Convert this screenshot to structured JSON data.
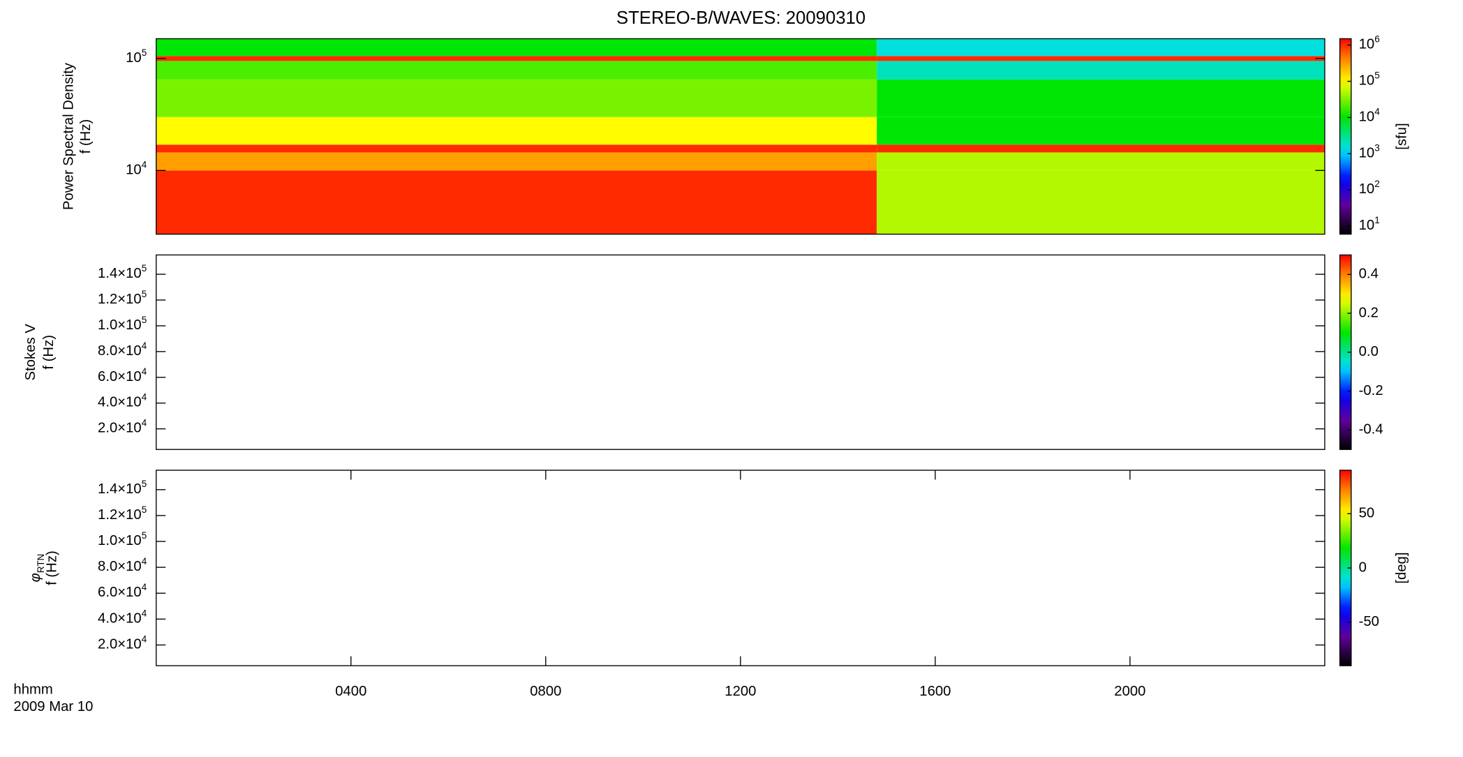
{
  "chart_data": [
    {
      "type": "spectrogram",
      "title": "STEREO-B/WAVES: 20090310",
      "ylabel": "Power Spectral Density",
      "ylabel2": "f (Hz)",
      "zlabel": "[sfu]",
      "xlim": [
        0,
        24
      ],
      "ylim": [
        2700,
        150000
      ],
      "log_y": true,
      "yticks": [
        {
          "value": 10000,
          "label": "10",
          "exp": "4"
        },
        {
          "value": 100000,
          "label": "10",
          "exp": "5"
        }
      ],
      "time_bins": [
        0,
        14.8,
        24
      ],
      "freq_bins": [
        2700,
        10000,
        14500,
        17000,
        30000,
        65000,
        95000,
        105000,
        150000
      ],
      "z": [
        [
          1000000,
          50000
        ],
        [
          300000,
          50000
        ],
        [
          1000000,
          1000000
        ],
        [
          100000,
          10000
        ],
        [
          30000,
          10000
        ],
        [
          20000,
          2000
        ],
        [
          1000000,
          1000000
        ],
        [
          10000,
          1500
        ]
      ],
      "zlim": [
        6,
        1500000
      ],
      "log_z": true,
      "zticks": [
        {
          "value": 10,
          "label": "10",
          "exp": "1"
        },
        {
          "value": 100,
          "label": "10",
          "exp": "2"
        },
        {
          "value": 1000,
          "label": "10",
          "exp": "3"
        },
        {
          "value": 10000,
          "label": "10",
          "exp": "4"
        },
        {
          "value": 100000,
          "label": "10",
          "exp": "5"
        },
        {
          "value": 1000000,
          "label": "10",
          "exp": "6"
        }
      ]
    },
    {
      "type": "spectrogram",
      "ylabel": "Stokes V",
      "ylabel2": "f (Hz)",
      "xlim": [
        0,
        24
      ],
      "ylim": [
        4000,
        155000
      ],
      "yticks": [
        {
          "value": 20000,
          "label": "2.0×10",
          "exp": "4"
        },
        {
          "value": 40000,
          "label": "4.0×10",
          "exp": "4"
        },
        {
          "value": 60000,
          "label": "6.0×10",
          "exp": "4"
        },
        {
          "value": 80000,
          "label": "8.0×10",
          "exp": "4"
        },
        {
          "value": 100000,
          "label": "1.0×10",
          "exp": "5"
        },
        {
          "value": 120000,
          "label": "1.2×10",
          "exp": "5"
        },
        {
          "value": 140000,
          "label": "1.4×10",
          "exp": "5"
        }
      ],
      "zlim": [
        -0.5,
        0.5
      ],
      "zticks": [
        -0.4,
        -0.2,
        {
          "value": 0,
          "label": "0.0"
        },
        0.2,
        0.4
      ]
    },
    {
      "type": "spectrogram",
      "ylabel": "φ",
      "ylabel_sub": "RTN",
      "ylabel2": "f (Hz)",
      "zlabel": "[deg]",
      "xlim": [
        0,
        24
      ],
      "ylim": [
        4000,
        155000
      ],
      "yticks": [
        {
          "value": 20000,
          "label": "2.0×10",
          "exp": "4"
        },
        {
          "value": 40000,
          "label": "4.0×10",
          "exp": "4"
        },
        {
          "value": 60000,
          "label": "6.0×10",
          "exp": "4"
        },
        {
          "value": 80000,
          "label": "8.0×10",
          "exp": "4"
        },
        {
          "value": 100000,
          "label": "1.0×10",
          "exp": "5"
        },
        {
          "value": 120000,
          "label": "1.2×10",
          "exp": "5"
        },
        {
          "value": 140000,
          "label": "1.4×10",
          "exp": "5"
        }
      ],
      "zlim": [
        -90,
        90
      ],
      "zticks": [
        -50,
        0,
        50
      ],
      "xticks": [
        {
          "value": 4,
          "label": "0400"
        },
        {
          "value": 8,
          "label": "0800"
        },
        {
          "value": 12,
          "label": "1200"
        },
        {
          "value": 16,
          "label": "1600"
        },
        {
          "value": 20,
          "label": "2000"
        }
      ],
      "xlabel": "hhmm",
      "date": "2009 Mar 10"
    }
  ]
}
